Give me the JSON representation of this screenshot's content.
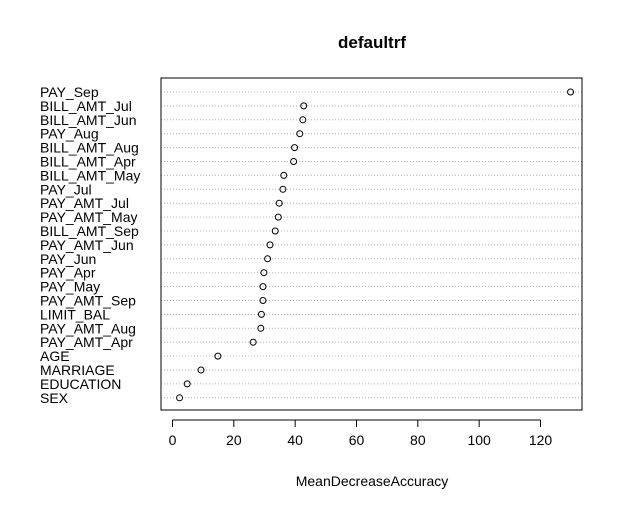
{
  "chart_data": {
    "type": "scatter",
    "subtype": "dotchart",
    "title": "defaultrf",
    "xlabel": "MeanDecreaseAccuracy",
    "ylabel": "",
    "xlim": [
      0,
      135
    ],
    "xticks": [
      0,
      20,
      40,
      60,
      80,
      100,
      120
    ],
    "grid": "dotted horizontal guide per row",
    "legend": "none",
    "point_color": "#000000",
    "points": [
      {
        "label": "PAY_Sep",
        "value": 129.8
      },
      {
        "label": "BILL_AMT_Jul",
        "value": 42.8
      },
      {
        "label": "BILL_AMT_Jun",
        "value": 42.5
      },
      {
        "label": "PAY_Aug",
        "value": 41.5
      },
      {
        "label": "BILL_AMT_Aug",
        "value": 39.8
      },
      {
        "label": "BILL_AMT_Apr",
        "value": 39.5
      },
      {
        "label": "BILL_AMT_May",
        "value": 36.3
      },
      {
        "label": "PAY_Jul",
        "value": 36.0
      },
      {
        "label": "PAY_AMT_Jul",
        "value": 34.8
      },
      {
        "label": "PAY_AMT_May",
        "value": 34.5
      },
      {
        "label": "BILL_AMT_Sep",
        "value": 33.5
      },
      {
        "label": "PAY_AMT_Jun",
        "value": 31.8
      },
      {
        "label": "PAY_Jun",
        "value": 31.0
      },
      {
        "label": "PAY_Apr",
        "value": 29.8
      },
      {
        "label": "PAY_May",
        "value": 29.5
      },
      {
        "label": "PAY_AMT_Sep",
        "value": 29.5
      },
      {
        "label": "LIMIT_BAL",
        "value": 29.0
      },
      {
        "label": "PAY_AMT_Aug",
        "value": 28.8
      },
      {
        "label": "PAY_AMT_Apr",
        "value": 26.3
      },
      {
        "label": "AGE",
        "value": 14.8
      },
      {
        "label": "MARRIAGE",
        "value": 9.3
      },
      {
        "label": "EDUCATION",
        "value": 4.8
      },
      {
        "label": "SEX",
        "value": 2.3
      }
    ]
  }
}
